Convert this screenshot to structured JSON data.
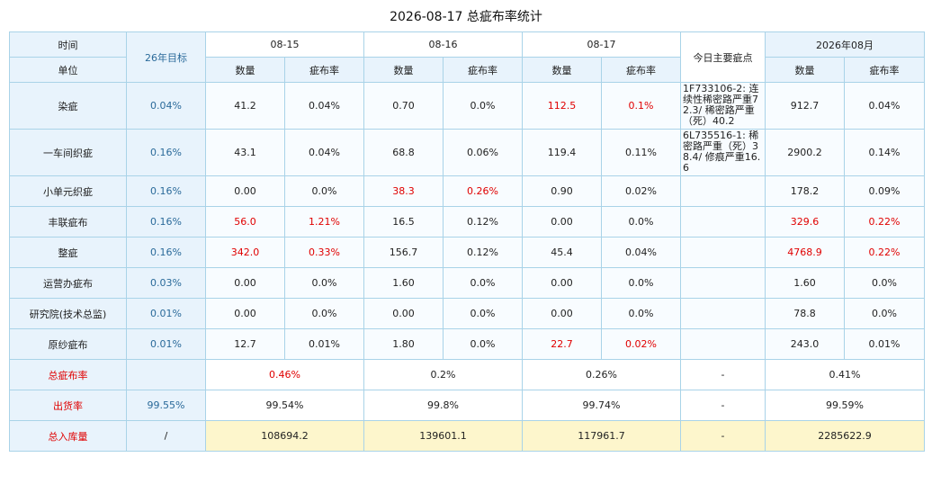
{
  "title": "2026-08-17 总疵布率统计",
  "header": {
    "time": "时间",
    "unit": "单位",
    "target": "26年目标",
    "dates": [
      "08-15",
      "08-16",
      "08-17"
    ],
    "defects": "今日主要疵点",
    "month": "2026年08月",
    "qty": "数量",
    "rate": "疵布率"
  },
  "rows": [
    {
      "label": "染疵",
      "target": "0.04%",
      "d1q": "41.2",
      "d1r": "0.04%",
      "d2q": "0.70",
      "d2r": "0.0%",
      "d3q": "112.5",
      "d3r": "0.1%",
      "note": "1F733106-2: 连续性稀密路严重72.3/ 稀密路严重（死）40.2",
      "mq": "912.7",
      "mr": "0.04%"
    },
    {
      "label": "一车间织疵",
      "target": "0.16%",
      "d1q": "43.1",
      "d1r": "0.04%",
      "d2q": "68.8",
      "d2r": "0.06%",
      "d3q": "119.4",
      "d3r": "0.11%",
      "note": "6L735516-1: 稀密路严重（死）38.4/ 修痕严重16.6",
      "mq": "2900.2",
      "mr": "0.14%"
    },
    {
      "label": "小单元织疵",
      "target": "0.16%",
      "d1q": "0.00",
      "d1r": "0.0%",
      "d2q": "38.3",
      "d2r": "0.26%",
      "d3q": "0.90",
      "d3r": "0.02%",
      "note": "",
      "mq": "178.2",
      "mr": "0.09%"
    },
    {
      "label": "丰联疵布",
      "target": "0.16%",
      "d1q": "56.0",
      "d1r": "1.21%",
      "d2q": "16.5",
      "d2r": "0.12%",
      "d3q": "0.00",
      "d3r": "0.0%",
      "note": "",
      "mq": "329.6",
      "mr": "0.22%"
    },
    {
      "label": "整疵",
      "target": "0.16%",
      "d1q": "342.0",
      "d1r": "0.33%",
      "d2q": "156.7",
      "d2r": "0.12%",
      "d3q": "45.4",
      "d3r": "0.04%",
      "note": "",
      "mq": "4768.9",
      "mr": "0.22%"
    },
    {
      "label": "运营办疵布",
      "target": "0.03%",
      "d1q": "0.00",
      "d1r": "0.0%",
      "d2q": "1.60",
      "d2r": "0.0%",
      "d3q": "0.00",
      "d3r": "0.0%",
      "note": "",
      "mq": "1.60",
      "mr": "0.0%"
    },
    {
      "label": "研究院(技术总监)",
      "target": "0.01%",
      "d1q": "0.00",
      "d1r": "0.0%",
      "d2q": "0.00",
      "d2r": "0.0%",
      "d3q": "0.00",
      "d3r": "0.0%",
      "note": "",
      "mq": "78.8",
      "mr": "0.0%"
    },
    {
      "label": "原纱疵布",
      "target": "0.01%",
      "d1q": "12.7",
      "d1r": "0.01%",
      "d2q": "1.80",
      "d2r": "0.0%",
      "d3q": "22.7",
      "d3r": "0.02%",
      "note": "",
      "mq": "243.0",
      "mr": "0.01%"
    }
  ],
  "summary": {
    "total": {
      "label": "总疵布率",
      "target": "",
      "d1": "0.46%",
      "d2": "0.2%",
      "d3": "0.26%",
      "note": "-",
      "m": "0.41%"
    },
    "ship": {
      "label": "出货率",
      "target": "99.55%",
      "d1": "99.54%",
      "d2": "99.8%",
      "d3": "99.74%",
      "note": "-",
      "m": "99.59%"
    },
    "stock": {
      "label": "总入库量",
      "target": "/",
      "d1": "108694.2",
      "d2": "139601.1",
      "d3": "117961.7",
      "note": "-",
      "m": "2285622.9"
    }
  },
  "colors": {
    "highlight": "#e00000",
    "target_text": "#2a6a9a",
    "header_bg": "#e8f3fc",
    "border": "#a9d3e8",
    "stock_bg": "#fdf6cc"
  }
}
